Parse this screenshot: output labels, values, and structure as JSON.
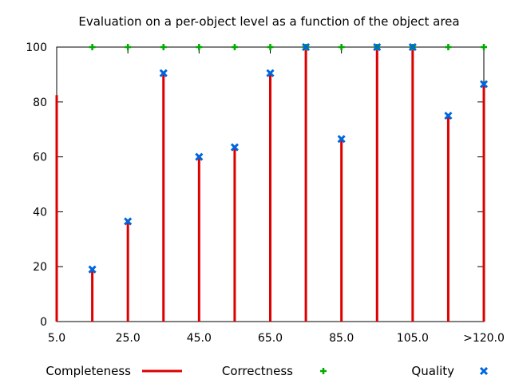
{
  "chart_data": {
    "type": "impulse+points",
    "title": "Evaluation on a per-object level as a function of the object area",
    "xlabel": "",
    "ylabel": "",
    "ylim": [
      0,
      100
    ],
    "xlim": [
      5,
      125
    ],
    "yticks": [
      0,
      20,
      40,
      60,
      80,
      100
    ],
    "xticks": [
      {
        "value": 5,
        "label": "5.0"
      },
      {
        "value": 25,
        "label": "25.0"
      },
      {
        "value": 45,
        "label": "45.0"
      },
      {
        "value": 65,
        "label": "65.0"
      },
      {
        "value": 85,
        "label": "85.0"
      },
      {
        "value": 105,
        "label": "105.0"
      },
      {
        "value": 125,
        "label": ">120.0"
      }
    ],
    "x": [
      5,
      15,
      25,
      35,
      45,
      55,
      65,
      75,
      85,
      95,
      105,
      115,
      125
    ],
    "grid": false,
    "legend_position": "bottom",
    "series": [
      {
        "name": "Completeness",
        "style": "impulse",
        "color": "#dd0000",
        "values": [
          82.5,
          19,
          36.5,
          90.5,
          60,
          63.5,
          90.5,
          100,
          66.5,
          100,
          100,
          75,
          87
        ]
      },
      {
        "name": "Correctness",
        "style": "plus",
        "color": "#00aa00",
        "values": [
          null,
          100,
          100,
          100,
          100,
          100,
          100,
          100,
          100,
          100,
          100,
          100,
          100
        ]
      },
      {
        "name": "Quality",
        "style": "cross",
        "color": "#0066dd",
        "values": [
          null,
          19,
          36.5,
          90.5,
          60,
          63.5,
          90.5,
          100,
          66.5,
          100,
          100,
          75,
          86.5
        ]
      }
    ]
  }
}
